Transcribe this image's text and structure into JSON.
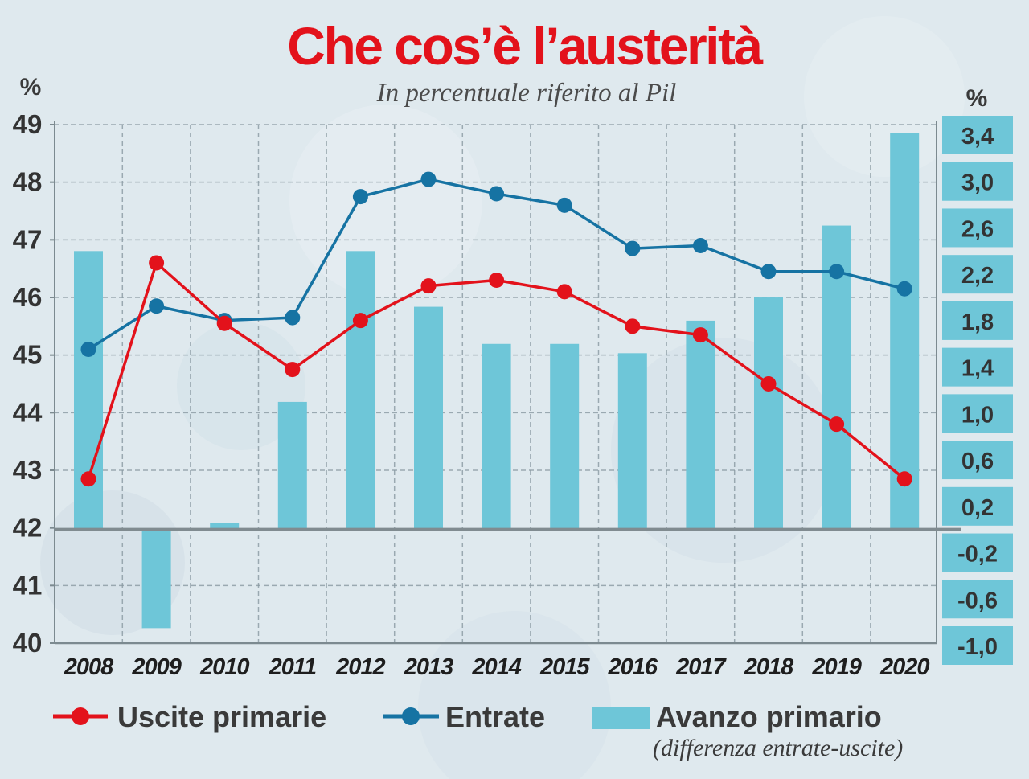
{
  "title": "Che cos’è l’austerità",
  "subtitle": "In percentuale riferito al Pil",
  "colors": {
    "background": "#dfe9ee",
    "uscite": "#e3121b",
    "entrate": "#1673a3",
    "avanzo": "#6ec6d8",
    "grid": "#8a9aa2",
    "axis": "#7c8a90",
    "title": "#e3121b"
  },
  "chart_data": {
    "type": "bar+line",
    "categories": [
      "2008",
      "2009",
      "2010",
      "2011",
      "2012",
      "2013",
      "2014",
      "2015",
      "2016",
      "2017",
      "2018",
      "2019",
      "2020"
    ],
    "left_axis": {
      "label": "%",
      "ylim": [
        40,
        49
      ],
      "ticks": [
        49,
        48,
        47,
        46,
        45,
        44,
        43,
        42,
        41,
        40
      ]
    },
    "right_axis": {
      "label": "%",
      "ylim": [
        -1.0,
        3.4
      ],
      "ticks": [
        "3,4",
        "3,0",
        "2,6",
        "2,2",
        "1,8",
        "1,4",
        "1,0",
        "0,6",
        "0,2",
        "-0,2",
        "-0,6",
        "-1,0"
      ]
    },
    "series": [
      {
        "name": "Uscite primarie",
        "type": "line",
        "axis": "left",
        "values": [
          42.85,
          46.6,
          45.55,
          44.75,
          45.6,
          46.2,
          46.3,
          46.1,
          45.5,
          45.35,
          44.5,
          43.8,
          42.85
        ]
      },
      {
        "name": "Entrate",
        "type": "line",
        "axis": "left",
        "values": [
          45.1,
          45.85,
          45.6,
          45.65,
          47.75,
          48.05,
          47.8,
          47.6,
          46.85,
          46.9,
          46.45,
          46.45,
          46.15
        ]
      },
      {
        "name": "Avanzo primario",
        "type": "bar",
        "axis": "right",
        "values": [
          2.4,
          -0.85,
          0.06,
          1.1,
          2.4,
          1.92,
          1.6,
          1.6,
          1.52,
          1.8,
          2.0,
          2.62,
          3.42
        ]
      }
    ],
    "legend": {
      "placement": "bottom",
      "items": [
        {
          "label": "Uscite primarie"
        },
        {
          "label": "Entrate"
        },
        {
          "label": "Avanzo primario",
          "note": "(differenza entrate-uscite)"
        }
      ]
    },
    "grid": true
  }
}
